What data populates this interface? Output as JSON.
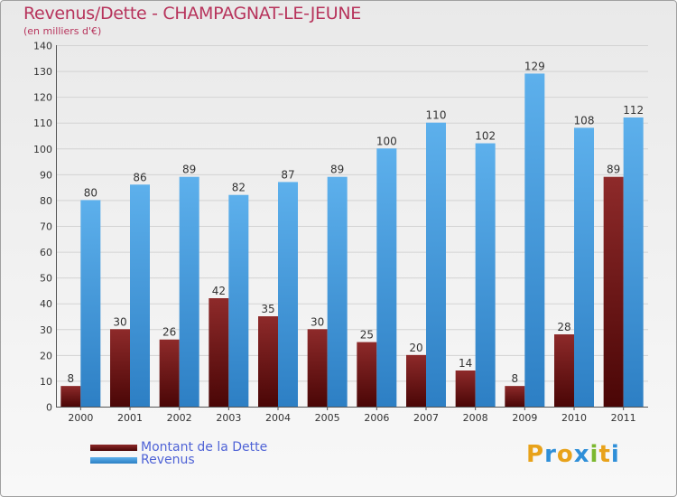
{
  "title": "Revenus/Dette - CHAMPAGNAT-LE-JEUNE",
  "subtitle": "(en milliers d'€)",
  "logo": {
    "letters": [
      "P",
      "r",
      "o",
      "x",
      "i",
      "t",
      "i"
    ],
    "colors": [
      "#e8a21a",
      "#2f8fd8",
      "#e8a21a",
      "#2f8fd8",
      "#7cb82f",
      "#e8a21a",
      "#2f8fd8"
    ]
  },
  "chart_data": {
    "type": "bar",
    "title": "Revenus/Dette - CHAMPAGNAT-LE-JEUNE",
    "subtitle": "(en milliers d'€)",
    "xlabel": "",
    "ylabel": "",
    "ylim": [
      0,
      140
    ],
    "yticks": [
      0,
      10,
      20,
      30,
      40,
      50,
      60,
      70,
      80,
      90,
      100,
      110,
      120,
      130,
      140
    ],
    "grid": true,
    "legend_position": "bottom-left",
    "categories": [
      "2000",
      "2001",
      "2002",
      "2003",
      "2004",
      "2005",
      "2006",
      "2007",
      "2008",
      "2009",
      "2010",
      "2011"
    ],
    "series": [
      {
        "name": "Montant de la Dette",
        "color": "#7a1818",
        "values": [
          8,
          30,
          26,
          42,
          35,
          30,
          25,
          20,
          14,
          8,
          28,
          89
        ]
      },
      {
        "name": "Revenus",
        "color": "#4aa3e4",
        "values": [
          80,
          86,
          89,
          82,
          87,
          89,
          100,
          110,
          102,
          129,
          108,
          112
        ]
      }
    ]
  }
}
